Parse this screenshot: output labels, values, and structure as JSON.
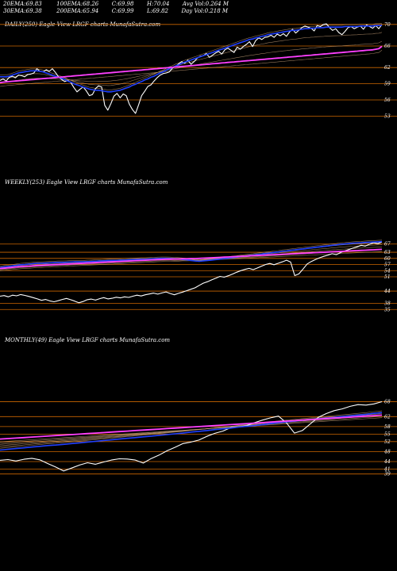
{
  "header": {
    "row1": [
      {
        "label": "20EMA:",
        "value": "69.83"
      },
      {
        "label": "100EMA:",
        "value": "68.26"
      },
      {
        "label": "C:",
        "value": "69.98"
      },
      {
        "label": "H:",
        "value": "70.04"
      },
      {
        "label": "Avg Vol:",
        "value": "0.264  M"
      }
    ],
    "row2": [
      {
        "label": "30EMA:",
        "value": "69.38"
      },
      {
        "label": "200EMA:",
        "value": "65.94"
      },
      {
        "label": "C:",
        "value": "69.99"
      },
      {
        "label": "L:",
        "value": "69.82"
      },
      {
        "label": "Day Vol:",
        "value": "0.218  M"
      }
    ]
  },
  "colors": {
    "background": "#000000",
    "price": "#ffffff",
    "ema_fast": "#2040ff",
    "ema_slow": "#ff40ff",
    "level_lines": "#cc6600",
    "ma_bundle": "#c8a078"
  },
  "chart_data": [
    {
      "type": "line",
      "title": "DAILY(250) Eagle  View  LRGF charts MunafaSutra.com",
      "ylim": [
        51,
        71
      ],
      "y_ticks": [
        70,
        66,
        62,
        59,
        56,
        53
      ],
      "series": [
        {
          "values": [
            59.6,
            59.9,
            59.5,
            60.2,
            60.4,
            60.1,
            60.6,
            60.5,
            60.3,
            60.7,
            60.8,
            61.0,
            61.8,
            61.3,
            61.2,
            61.6,
            61.3,
            61.8,
            61.1,
            60.3,
            59.8,
            59.4,
            59.6,
            59.2,
            58.3,
            57.5,
            58.0,
            58.4,
            57.7,
            56.8,
            57.0,
            58.1,
            58.6,
            58.4,
            55.0,
            54.1,
            55.3,
            56.7,
            57.2,
            56.4,
            57.1,
            56.8,
            55.2,
            54.2,
            53.5,
            55.1,
            56.8,
            57.6,
            58.5,
            58.8,
            59.5,
            60.1,
            60.6,
            60.9,
            61.0,
            61.2,
            61.9,
            62.2,
            62.7,
            63.1,
            62.8,
            63.4,
            62.6,
            63.1,
            63.7,
            64.1,
            64.2,
            64.6,
            63.9,
            64.3,
            64.7,
            65.0,
            64.5,
            65.3,
            65.6,
            65.2,
            64.8,
            65.8,
            65.4,
            65.9,
            66.3,
            66.8,
            65.9,
            67.0,
            67.5,
            67.2,
            67.6,
            67.7,
            68.0,
            67.6,
            68.2,
            67.9,
            68.3,
            67.8,
            68.6,
            69.1,
            68.4,
            68.9,
            69.4,
            69.7,
            69.5,
            69.3,
            68.8,
            69.8,
            69.6,
            70.0,
            70.1,
            69.4,
            68.9,
            69.2,
            68.5,
            68.1,
            68.7,
            69.4,
            69.6,
            69.2,
            69.5,
            69.7,
            69.1,
            69.9,
            69.6,
            69.3,
            69.8,
            69.2,
            69.98
          ]
        },
        {
          "values": [
            60.3,
            60.3,
            60.3,
            60.4,
            60.6,
            60.8,
            61.0,
            61.1,
            61.2,
            61.3,
            61.4,
            61.4,
            61.4,
            61.3,
            61.2,
            61.0,
            60.8,
            60.6,
            60.4,
            60.2,
            60.0,
            59.8,
            59.5,
            59.3,
            59.0,
            58.8,
            58.6,
            58.4,
            58.2,
            58.0,
            57.9,
            57.8,
            57.8,
            57.7,
            57.6,
            57.5,
            57.5,
            57.6,
            57.7,
            57.8,
            58.0,
            58.2,
            58.4,
            58.7,
            58.9,
            59.2,
            59.4,
            59.7,
            59.9,
            60.2,
            60.4,
            60.7,
            61.0,
            61.2,
            61.5,
            61.8,
            62.0,
            62.3,
            62.5,
            62.8,
            63.0,
            63.2,
            63.4,
            63.6,
            63.8,
            64.0,
            64.2,
            64.4,
            64.6,
            64.8,
            65.0,
            65.2,
            65.4,
            65.6,
            65.8,
            66.0,
            66.2,
            66.4,
            66.6,
            66.8,
            67.0,
            67.2,
            67.3,
            67.5,
            67.6,
            67.8,
            67.9,
            68.1,
            68.2,
            68.3,
            68.4,
            68.5,
            68.6,
            68.7,
            68.8,
            68.9,
            68.9,
            69.0,
            69.1,
            69.2,
            69.2,
            69.3,
            69.3,
            69.4,
            69.4,
            69.4,
            69.5,
            69.5,
            69.5,
            69.5,
            69.5,
            69.5,
            69.6,
            69.6,
            69.6,
            69.6,
            69.6,
            69.7,
            69.7,
            69.7,
            69.7,
            69.7,
            69.8,
            69.8,
            69.83
          ]
        },
        {
          "values": [
            59.2,
            59.3,
            59.35,
            59.4,
            59.45,
            59.5,
            59.55,
            59.6,
            59.65,
            59.7,
            59.75,
            59.8,
            59.85,
            59.9,
            59.95,
            60.0,
            60.05,
            60.1,
            60.15,
            60.2,
            60.25,
            60.3,
            60.35,
            60.4,
            60.45,
            60.5,
            60.55,
            60.6,
            60.65,
            60.7,
            60.75,
            60.8,
            60.85,
            60.9,
            60.95,
            61.0,
            61.05,
            61.1,
            61.15,
            61.2,
            61.25,
            61.3,
            61.35,
            61.4,
            61.45,
            61.5,
            61.55,
            61.6,
            61.65,
            61.7,
            61.75,
            61.8,
            61.85,
            61.9,
            61.95,
            62.0,
            62.05,
            62.1,
            62.15,
            62.2,
            62.25,
            62.3,
            62.35,
            62.4,
            62.45,
            62.5,
            62.55,
            62.6,
            62.65,
            62.7,
            62.75,
            62.8,
            62.85,
            62.9,
            62.95,
            63.0,
            63.05,
            63.1,
            63.15,
            63.2,
            63.25,
            63.3,
            63.35,
            63.4,
            63.45,
            63.5,
            63.55,
            63.6,
            63.65,
            63.7,
            63.75,
            63.8,
            63.85,
            63.9,
            63.95,
            64.0,
            64.05,
            64.1,
            64.15,
            64.2,
            64.25,
            64.3,
            64.35,
            64.4,
            64.45,
            64.5,
            64.55,
            64.6,
            64.65,
            64.7,
            64.75,
            64.8,
            64.85,
            64.9,
            64.95,
            65.0,
            65.05,
            65.1,
            65.15,
            65.2,
            65.25,
            65.3,
            65.4,
            65.5,
            65.94
          ]
        }
      ]
    },
    {
      "type": "line",
      "title": "WEEKLY(253) Eagle  View  LRGF charts MunafaSutra.com",
      "ylim": [
        32,
        70
      ],
      "y_ticks": [
        67,
        63,
        60,
        57,
        54,
        51,
        44,
        38,
        35
      ],
      "series": [
        {
          "values": [
            41.5,
            41.8,
            41.2,
            42.0,
            41.7,
            42.3,
            41.9,
            41.4,
            40.8,
            40.2,
            39.5,
            39.9,
            39.2,
            38.8,
            39.3,
            39.9,
            40.4,
            39.8,
            39.1,
            38.3,
            38.9,
            39.8,
            40.1,
            39.6,
            40.3,
            40.8,
            40.2,
            40.5,
            41.0,
            40.7,
            41.2,
            40.9,
            41.5,
            42.0,
            41.6,
            42.2,
            42.6,
            43.0,
            42.5,
            43.1,
            43.6,
            42.8,
            42.2,
            42.9,
            43.5,
            44.2,
            44.9,
            45.6,
            46.8,
            47.9,
            48.6,
            49.5,
            50.3,
            51.2,
            50.8,
            51.5,
            52.3,
            53.2,
            54.0,
            54.6,
            55.1,
            54.5,
            55.3,
            56.2,
            57.0,
            57.5,
            56.9,
            57.6,
            58.3,
            59.1,
            58.2,
            51.6,
            52.4,
            54.8,
            57.3,
            58.5,
            59.4,
            60.3,
            61.0,
            61.6,
            62.3,
            61.8,
            62.8,
            63.6,
            64.3,
            65.0,
            65.6,
            66.4,
            66.0,
            66.9,
            67.6,
            67.2,
            67.99
          ]
        },
        {
          "values": [
            55.5,
            55.8,
            56.0,
            56.3,
            56.6,
            56.9,
            57.0,
            57.2,
            57.4,
            57.6,
            57.6,
            57.7,
            57.8,
            57.9,
            58.0,
            58.0,
            58.1,
            58.2,
            58.3,
            58.3,
            58.3,
            58.4,
            58.5,
            58.6,
            58.7,
            58.8,
            58.9,
            59.0,
            59.0,
            59.1,
            59.2,
            59.3,
            59.4,
            59.5,
            59.6,
            59.6,
            59.7,
            59.8,
            59.9,
            60.0,
            60.0,
            59.9,
            59.8,
            59.7,
            59.5,
            59.3,
            59.0,
            58.7,
            58.6,
            58.8,
            59.0,
            59.2,
            59.4,
            59.6,
            59.9,
            60.1,
            60.4,
            60.6,
            60.9,
            61.1,
            61.4,
            61.6,
            61.9,
            62.1,
            62.4,
            62.6,
            62.9,
            63.1,
            63.4,
            63.6,
            63.9,
            64.1,
            64.4,
            64.6,
            64.9,
            65.1,
            65.4,
            65.6,
            65.9,
            66.1,
            66.4,
            66.6,
            66.9,
            67.0,
            67.2,
            67.4,
            67.5,
            67.6,
            67.8,
            67.9,
            68.0,
            68.1,
            68.2
          ]
        },
        {
          "values": [
            55.0,
            55.2,
            55.4,
            55.6,
            55.8,
            56.0,
            56.1,
            56.2,
            56.4,
            56.5,
            56.6,
            56.7,
            56.8,
            56.9,
            57.0,
            57.1,
            57.2,
            57.3,
            57.4,
            57.5,
            57.6,
            57.7,
            57.8,
            57.9,
            58.0,
            58.1,
            58.2,
            58.3,
            58.4,
            58.5,
            58.6,
            58.7,
            58.8,
            58.9,
            59.0,
            59.1,
            59.2,
            59.3,
            59.4,
            59.5,
            59.6,
            59.6,
            59.7,
            59.7,
            59.8,
            59.8,
            59.9,
            59.9,
            60.0,
            60.1,
            60.2,
            60.3,
            60.4,
            60.5,
            60.6,
            60.7,
            60.8,
            60.9,
            61.0,
            61.1,
            61.2,
            61.3,
            61.4,
            61.5,
            61.6,
            61.7,
            61.8,
            61.9,
            62.0,
            62.1,
            62.2,
            62.3,
            62.4,
            62.5,
            62.6,
            62.7,
            62.8,
            62.9,
            63.0,
            63.1,
            63.2,
            63.3,
            63.4,
            63.5,
            63.6,
            63.7,
            63.8,
            63.9,
            64.0,
            64.1,
            64.2,
            64.3,
            64.4
          ]
        }
      ]
    },
    {
      "type": "line",
      "title": "MONTHLY(49) Eagle  View  LRGF charts MunafaSutra.com",
      "ylim": [
        37,
        71
      ],
      "y_ticks": [
        68,
        62,
        58,
        55,
        52,
        48,
        44,
        41,
        39
      ],
      "series": [
        {
          "values": [
            44.5,
            44.8,
            44.2,
            44.9,
            45.3,
            44.7,
            43.2,
            41.8,
            40.2,
            41.4,
            42.6,
            43.5,
            42.9,
            43.8,
            44.6,
            45.1,
            45.0,
            44.6,
            43.4,
            45.2,
            46.6,
            48.3,
            49.7,
            51.2,
            51.8,
            52.6,
            54.1,
            55.3,
            56.2,
            57.6,
            57.8,
            58.4,
            59.6,
            60.6,
            61.5,
            62.2,
            59.5,
            55.4,
            56.4,
            59.1,
            61.7,
            63.2,
            64.4,
            65.1,
            66.1,
            66.8,
            66.6,
            67.1,
            67.99
          ]
        },
        {
          "values": [
            48.6,
            48.9,
            49.2,
            49.5,
            49.8,
            50.1,
            50.4,
            50.6,
            50.9,
            51.2,
            51.5,
            51.8,
            52.1,
            52.4,
            52.7,
            53.0,
            53.3,
            53.6,
            53.9,
            54.2,
            54.5,
            54.8,
            55.1,
            55.4,
            55.8,
            56.1,
            56.4,
            56.8,
            57.1,
            57.4,
            57.8,
            58.1,
            58.4,
            58.8,
            59.2,
            59.6,
            59.9,
            60.2,
            60.5,
            60.8,
            61.1,
            61.4,
            61.7,
            62.0,
            62.3,
            62.6,
            62.9,
            63.3,
            63.6
          ]
        },
        {
          "values": [
            53.0,
            53.2,
            53.4,
            53.6,
            53.8,
            54.0,
            54.2,
            54.4,
            54.6,
            54.8,
            55.0,
            55.2,
            55.4,
            55.6,
            55.8,
            56.0,
            56.2,
            56.4,
            56.6,
            56.8,
            57.0,
            57.2,
            57.4,
            57.6,
            57.8,
            58.0,
            58.2,
            58.4,
            58.6,
            58.8,
            59.0,
            59.2,
            59.4,
            59.6,
            59.8,
            60.0,
            60.2,
            60.4,
            60.6,
            60.8,
            61.0,
            61.2,
            61.4,
            61.6,
            61.8,
            62.0,
            62.2,
            62.4,
            62.6
          ]
        }
      ]
    }
  ]
}
